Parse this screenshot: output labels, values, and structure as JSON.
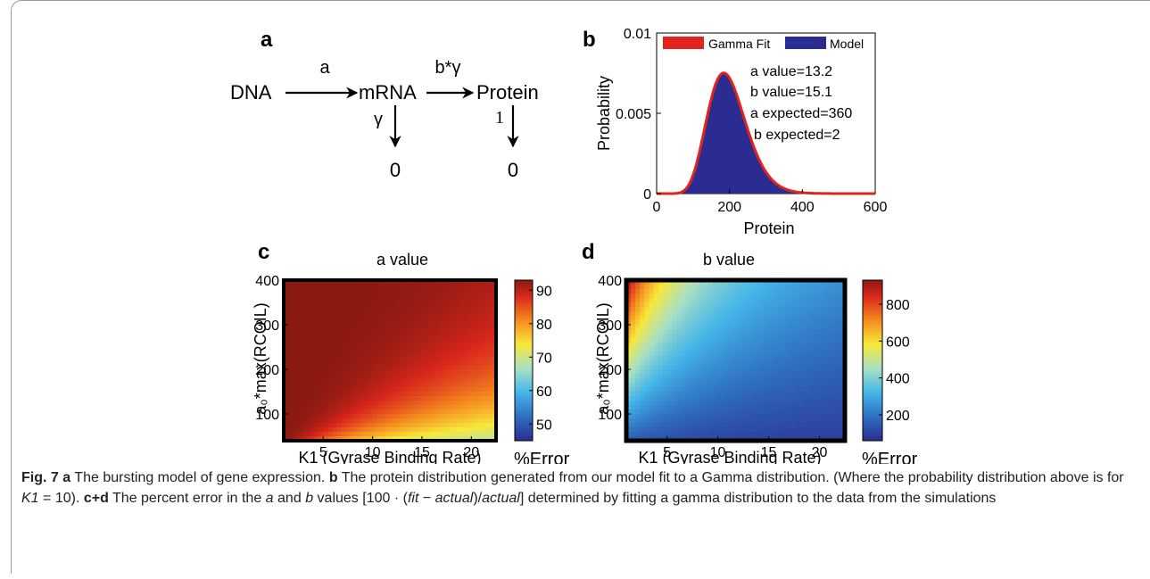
{
  "panel_labels": {
    "a": "a",
    "b": "b",
    "c": "c",
    "d": "d"
  },
  "diagram": {
    "dna": "DNA",
    "mrna": "mRNA",
    "protein": "Protein",
    "rate_transcription": "a",
    "rate_translation": "b*γ",
    "rate_mrna_decay": "γ",
    "rate_protein_decay": "1",
    "sink_mrna": "0",
    "sink_protein": "0"
  },
  "panel_b_text": {
    "annot1": "a value=13.2",
    "annot2": "b value=15.1",
    "annot3": "a expected=360",
    "annot4": "b expected=2"
  },
  "colors": {
    "gamma": "#e0231d",
    "model": "#2b2c91",
    "jet_low": "#2b2c91",
    "jet_high": "#8b1a12"
  },
  "chart_data": [
    {
      "type": "area",
      "panel": "b",
      "title": "",
      "xlabel": "Protein",
      "ylabel": "Probability",
      "xlim": [
        0,
        600
      ],
      "ylim": [
        0,
        0.01
      ],
      "xticks": [
        "0",
        "200",
        "400",
        "600"
      ],
      "yticks": [
        "0",
        "0.005",
        "0.01"
      ],
      "legend": [
        "Gamma Fit",
        "Model"
      ],
      "legend_position": "top",
      "gamma_shape": 13.2,
      "gamma_scale": 15.1,
      "peak": {
        "x": 185,
        "y": 0.0074
      },
      "series": [
        {
          "name": "Gamma Fit",
          "style": "line"
        },
        {
          "name": "Model",
          "style": "filled histogram"
        }
      ]
    },
    {
      "type": "heatmap",
      "panel": "c",
      "title": "a value",
      "xlabel": "K1 (Gyrase Binding Rate)",
      "ylabel": "a₀*max(RCOIL)",
      "xticks": [
        "5",
        "10",
        "15",
        "20"
      ],
      "yticks": [
        "100",
        "200",
        "300",
        "400"
      ],
      "xlim": [
        1,
        22.5
      ],
      "ylim": [
        40,
        400
      ],
      "colorbar_label": "%Error",
      "colorbar_ticks": [
        "50",
        "60",
        "70",
        "80",
        "90"
      ],
      "colorbar_range": [
        45,
        93
      ]
    },
    {
      "type": "heatmap",
      "panel": "d",
      "title": "b value",
      "xlabel": "K1 (Gyrase Binding Rate)",
      "ylabel": "a₀*max(RCOIL)",
      "xticks": [
        "5",
        "10",
        "15",
        "20"
      ],
      "yticks": [
        "100",
        "200",
        "300",
        "400"
      ],
      "xlim": [
        1,
        22.5
      ],
      "ylim": [
        40,
        400
      ],
      "colorbar_label": "%Error",
      "colorbar_ticks": [
        "200",
        "400",
        "600",
        "800"
      ],
      "colorbar_range": [
        60,
        930
      ]
    }
  ],
  "caption": {
    "fig": "Fig. 7",
    "a_label": "a",
    "a_text": "The bursting model of gene expression.",
    "b_label": "b",
    "b_text": "The protein distribution generated from our model fit to a Gamma distribution. (Where the probability distribution above is for",
    "b_k": "K1",
    "b_text2": "= 10).",
    "cd_label": "c+d",
    "cd_text1": "The percent error in the",
    "cd_a": "a",
    "cd_and": "and",
    "cd_b": "b",
    "cd_text2": "values [100 · (",
    "cd_fit": "fit",
    "cd_minus": "−",
    "cd_actual": "actual",
    "cd_close": ")/",
    "cd_actual2": "actual",
    "cd_text3": "] determined by fitting a gamma distribution to the data from the simulations"
  }
}
